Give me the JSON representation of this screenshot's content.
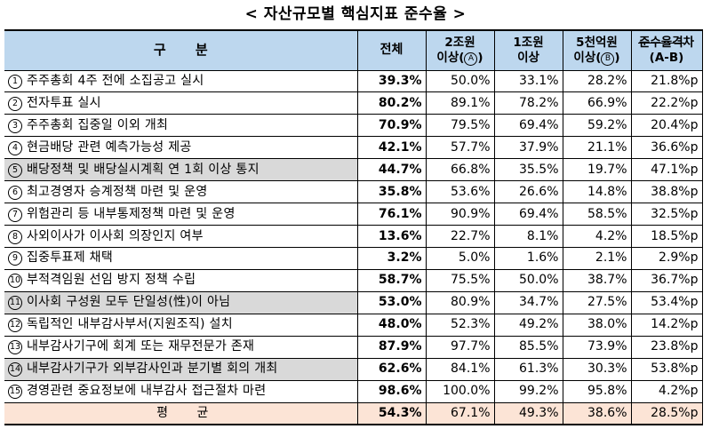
{
  "title": "< 자산규모별 핵심지표 준수율 >",
  "headers": {
    "category": "구 분",
    "total": "전체",
    "c1_top": "2조원",
    "c1_bottom": "이상",
    "c1_mark": "A",
    "c2_top": "1조원",
    "c2_bottom": "이상",
    "c3_top": "5천억원",
    "c3_bottom": "이상",
    "c3_mark": "B",
    "c4_top_struck": "준수율격",
    "c4_top_after": "차",
    "c4_bottom": "(A-B)"
  },
  "rows": [
    {
      "no": "1",
      "label": "주주총회 4주 전에 소집공고 실시",
      "total": "39.3%",
      "c1": "50.0%",
      "c2": "33.1%",
      "c3": "28.2%",
      "c4": "21.8%p",
      "shaded": false
    },
    {
      "no": "2",
      "label": "전자투표 실시",
      "total": "80.2%",
      "c1": "89.1%",
      "c2": "78.2%",
      "c3": "66.9%",
      "c4": "22.2%p",
      "shaded": false
    },
    {
      "no": "3",
      "label": "주주총회 집중일 이외 개최",
      "total": "70.9%",
      "c1": "79.5%",
      "c2": "69.4%",
      "c3": "59.2%",
      "c4": "20.4%p",
      "shaded": false
    },
    {
      "no": "4",
      "label": "현금배당 관련 예측가능성 제공",
      "total": "42.1%",
      "c1": "57.7%",
      "c2": "37.9%",
      "c3": "21.1%",
      "c4": "36.6%p",
      "shaded": false
    },
    {
      "no": "5",
      "label": "배당정책 및 배당실시계획 연 1회 이상 통지",
      "total": "44.7%",
      "c1": "66.8%",
      "c2": "35.5%",
      "c3": "19.7%",
      "c4": "47.1%p",
      "shaded": true
    },
    {
      "no": "6",
      "label": "최고경영자 승계정책 마련 및 운영",
      "total": "35.8%",
      "c1": "53.6%",
      "c2": "26.6%",
      "c3": "14.8%",
      "c4": "38.8%p",
      "shaded": false
    },
    {
      "no": "7",
      "label": "위험관리 등 내부통제정책 마련 및 운영",
      "total": "76.1%",
      "c1": "90.9%",
      "c2": "69.4%",
      "c3": "58.5%",
      "c4": "32.5%p",
      "shaded": false
    },
    {
      "no": "8",
      "label": "사외이사가 이사회 의장인지 여부",
      "total": "13.6%",
      "c1": "22.7%",
      "c2": "8.1%",
      "c3": "4.2%",
      "c4": "18.5%p",
      "shaded": false
    },
    {
      "no": "9",
      "label": "집중투표제 채택",
      "total": "3.2%",
      "c1": "5.0%",
      "c2": "1.6%",
      "c3": "2.1%",
      "c4": "2.9%p",
      "shaded": false
    },
    {
      "no": "10",
      "label": "부적격임원 선임 방지 정책 수립",
      "total": "58.7%",
      "c1": "75.5%",
      "c2": "50.0%",
      "c3": "38.7%",
      "c4": "36.7%p",
      "shaded": false
    },
    {
      "no": "11",
      "label": "이사회 구성원 모두 단일성(性)이 아님",
      "total": "53.0%",
      "c1": "80.9%",
      "c2": "34.7%",
      "c3": "27.5%",
      "c4": "53.4%p",
      "shaded": true
    },
    {
      "no": "12",
      "label": "독립적인 내부감사부서(지원조직) 설치",
      "total": "48.0%",
      "c1": "52.3%",
      "c2": "49.2%",
      "c3": "38.0%",
      "c4": "14.2%p",
      "shaded": false
    },
    {
      "no": "13",
      "label": "내부감사기구에 회계 또는 재무전문가 존재",
      "total": "87.9%",
      "c1": "97.7%",
      "c2": "85.5%",
      "c3": "73.9%",
      "c4": "23.8%p",
      "shaded": false
    },
    {
      "no": "14",
      "label": "내부감사기구가 외부감사인과 분기별 회의 개최",
      "total": "62.6%",
      "c1": "84.1%",
      "c2": "61.3%",
      "c3": "30.3%",
      "c4": "53.8%p",
      "shaded": true
    },
    {
      "no": "15",
      "label": "경영관련 중요정보에 내부감사 접근절차 마련",
      "total": "98.6%",
      "c1": "100.0%",
      "c2": "99.2%",
      "c3": "95.8%",
      "c4": "4.2%p",
      "shaded": false
    }
  ],
  "average": {
    "label": "평 균",
    "total": "54.3%",
    "c1": "67.1%",
    "c2": "49.3%",
    "c3": "38.6%",
    "c4": "28.5%p"
  },
  "colors": {
    "header_bg": "#bdd7ee",
    "shaded_row": "#d9d9d9",
    "average_row": "#fce4d6"
  }
}
